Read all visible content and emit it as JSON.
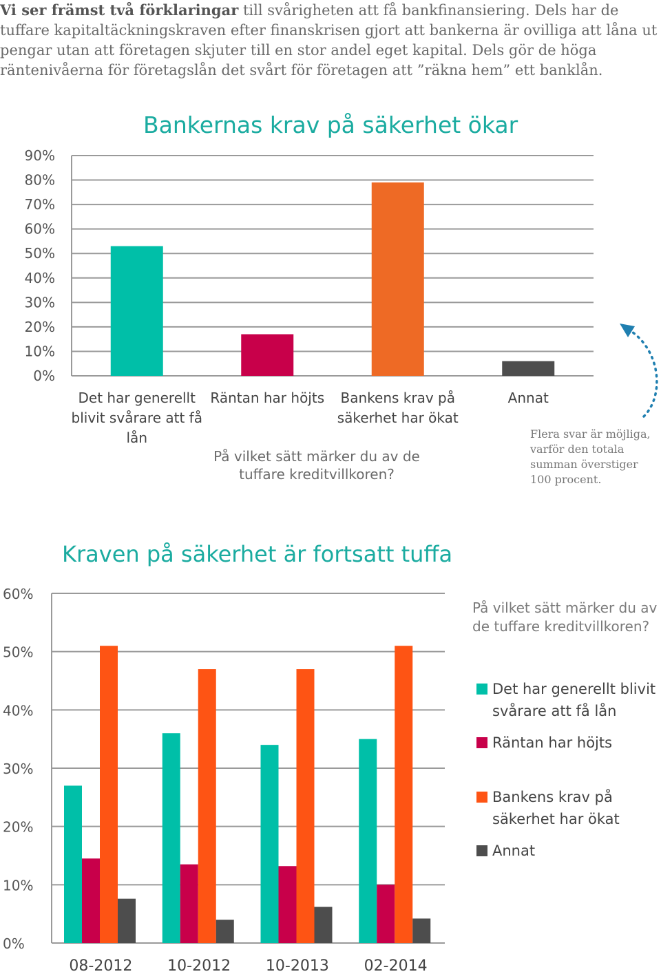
{
  "intro": {
    "lead": "Vi ser främst två förklaringar",
    "rest": " till svårigheten att få bankfinansiering. Dels har de tuffare kapitaltäckningskraven efter finanskrisen gjort att bankerna är ovilliga att låna ut pengar utan att företagen skjuter till en stor andel eget kapital. Dels gör de höga räntenivåerna för företagslån det svårt för företagen att ”räkna hem” ett banklån."
  },
  "colors": {
    "teal": "#00bfa8",
    "crimson": "#c8004a",
    "orange": "#ee6a25",
    "orange2": "#fe5414",
    "dark": "#4d4d4d",
    "title": "#1aaba0",
    "grid": "#9a9a9a"
  },
  "chart_data": [
    {
      "type": "bar",
      "title": "Bankernas krav på säkerhet ökar",
      "categories": [
        [
          "Det har generellt",
          "blivit svårare att få",
          "lån"
        ],
        [
          "Räntan har höjts"
        ],
        [
          "Bankens krav på",
          "säkerhet har ökat"
        ],
        [
          "Annat"
        ]
      ],
      "values": [
        53,
        17,
        79,
        6
      ],
      "ylim": [
        0,
        90
      ],
      "yticks": [
        "0%",
        "10%",
        "20%",
        "30%",
        "40%",
        "50%",
        "60%",
        "70%",
        "80%",
        "90%"
      ],
      "question": "På vilket sätt märker du av de tuffare kreditvillkoren?",
      "note": "Flera svar är möjliga, varför den totala summan överstiger 100 procent.",
      "grid": true
    },
    {
      "type": "bar",
      "title": "Kraven på säkerhet är fortsatt tuffa",
      "categories": [
        "08-2012",
        "10-2012",
        "10-2013",
        "02-2014"
      ],
      "series": [
        {
          "name": "Det har generellt blivit svårare att få lån",
          "values": [
            27,
            36,
            34,
            35
          ]
        },
        {
          "name": "Räntan har höjts",
          "values": [
            14.5,
            13.5,
            13.2,
            10
          ]
        },
        {
          "name": "Bankens krav på säkerhet har ökat",
          "values": [
            51,
            47,
            47,
            51
          ]
        },
        {
          "name": "Annat",
          "values": [
            7.6,
            4,
            6.2,
            4.2
          ]
        }
      ],
      "ylim": [
        0,
        60
      ],
      "yticks": [
        "0%",
        "10%",
        "20%",
        "30%",
        "40%",
        "50%",
        "60%"
      ],
      "question": "På vilket sätt märker du av de tuffare kreditvillkoren?",
      "legend": {
        "position": "right",
        "items": [
          [
            "Det har generellt blivit",
            "svårare att få lån"
          ],
          [
            "Räntan har höjts"
          ],
          [
            "Bankens krav på",
            "säkerhet har ökat"
          ],
          [
            "Annat"
          ]
        ]
      },
      "grid": true
    }
  ]
}
